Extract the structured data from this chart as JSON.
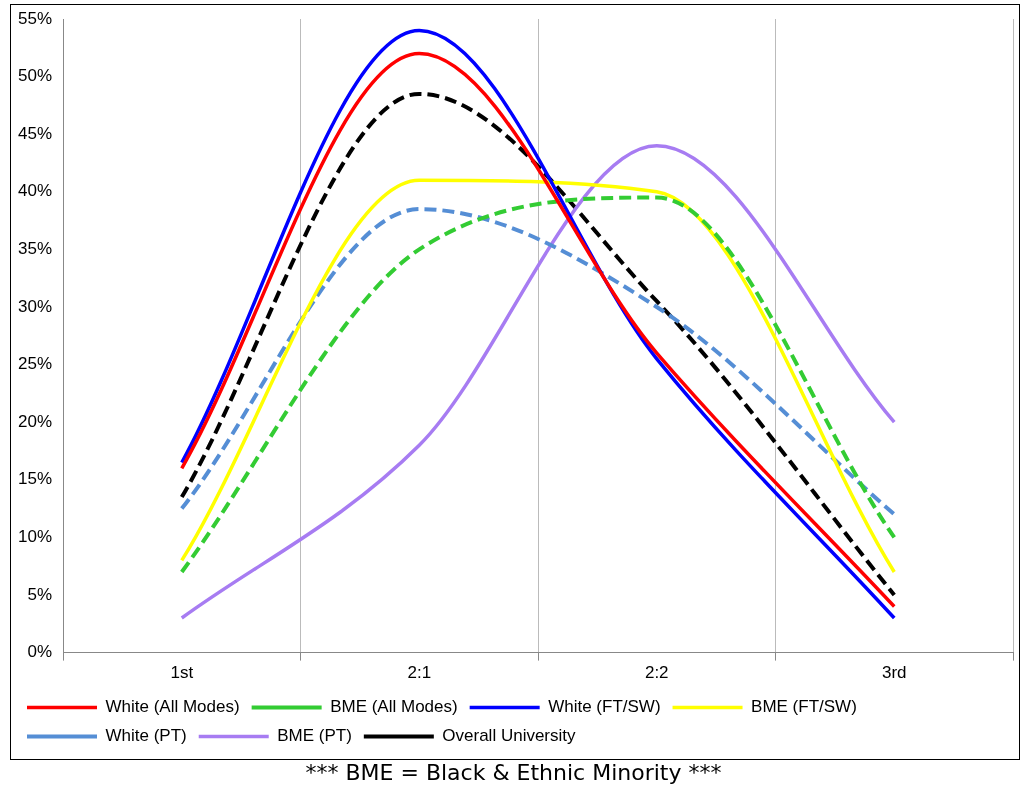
{
  "chart_data": {
    "type": "line",
    "categories": [
      "1st",
      "2:1",
      "2:2",
      "3rd"
    ],
    "series": [
      {
        "name": "White (All Modes)",
        "color": "#ff0000",
        "values": [
          16,
          52,
          26,
          4
        ]
      },
      {
        "name": "BME (All Modes)",
        "color": "#33cc33",
        "values": [
          7,
          35,
          39.5,
          10
        ],
        "line_style": "dashed"
      },
      {
        "name": "White (FT/SW)",
        "color": "#0000ff",
        "values": [
          16.5,
          54,
          25.5,
          3
        ]
      },
      {
        "name": "BME (FT/SW)",
        "color": "#ffff00",
        "values": [
          8,
          41,
          40,
          7
        ]
      },
      {
        "name": "White (PT)",
        "color": "#558ed5",
        "values": [
          12.5,
          38.5,
          30,
          12
        ],
        "line_style": "dashed"
      },
      {
        "name": "BME (PT)",
        "color": "#a77cf2",
        "values": [
          3,
          18,
          44,
          20
        ]
      },
      {
        "name": "Overall University",
        "color": "#000000",
        "values": [
          13.5,
          48.5,
          30.5,
          5
        ],
        "line_style": "dashed"
      }
    ],
    "ylim": [
      0,
      55
    ],
    "yticks": [
      {
        "value": 0,
        "label": "0%"
      },
      {
        "value": 5,
        "label": "5%"
      },
      {
        "value": 10,
        "label": "10%"
      },
      {
        "value": 15,
        "label": "15%"
      },
      {
        "value": 20,
        "label": "20%"
      },
      {
        "value": 25,
        "label": "25%"
      },
      {
        "value": 30,
        "label": "30%"
      },
      {
        "value": 35,
        "label": "35%"
      },
      {
        "value": 40,
        "label": "40%"
      },
      {
        "value": 45,
        "label": "45%"
      },
      {
        "value": 50,
        "label": "50%"
      },
      {
        "value": 55,
        "label": "55%"
      }
    ],
    "grid": "x",
    "legend": "bottom",
    "marker": "none",
    "annotations": [
      "*** BME = Black & Ethnic Minority ***"
    ]
  }
}
